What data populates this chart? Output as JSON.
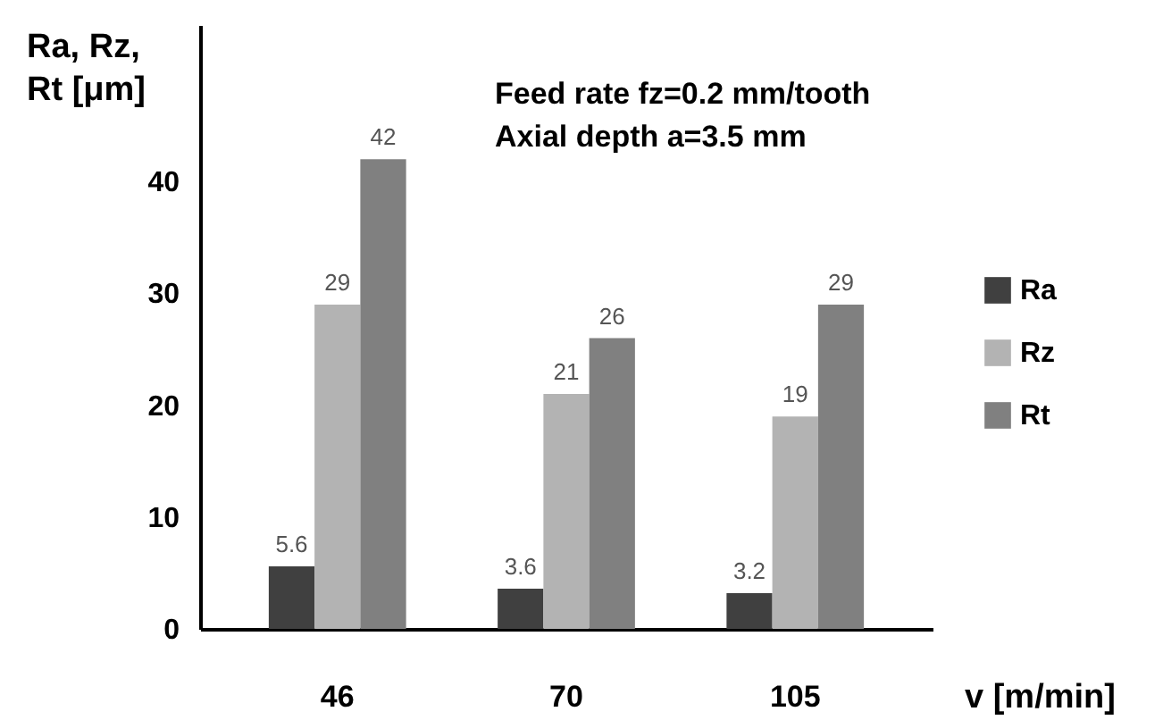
{
  "chart_data": {
    "type": "bar",
    "ylabel": "Ra,   Rz,\nRt  [μm]",
    "xlabel": "v [m/min]",
    "annotations": [
      "Feed rate fz=0.2 mm/tooth",
      "Axial depth a=3.5 mm"
    ],
    "categories": [
      "46",
      "70",
      "105"
    ],
    "series": [
      {
        "name": "Ra",
        "color": "#404040",
        "values": [
          5.6,
          3.6,
          3.2
        ]
      },
      {
        "name": "Rz",
        "color": "#b3b3b3",
        "values": [
          29,
          21,
          19
        ]
      },
      {
        "name": "Rt",
        "color": "#808080",
        "values": [
          42,
          26,
          29
        ]
      }
    ],
    "ylim": [
      0,
      54
    ],
    "yticks": [
      0,
      10,
      20,
      30,
      40
    ],
    "grid": false,
    "legend": "right",
    "data_labels": true
  }
}
